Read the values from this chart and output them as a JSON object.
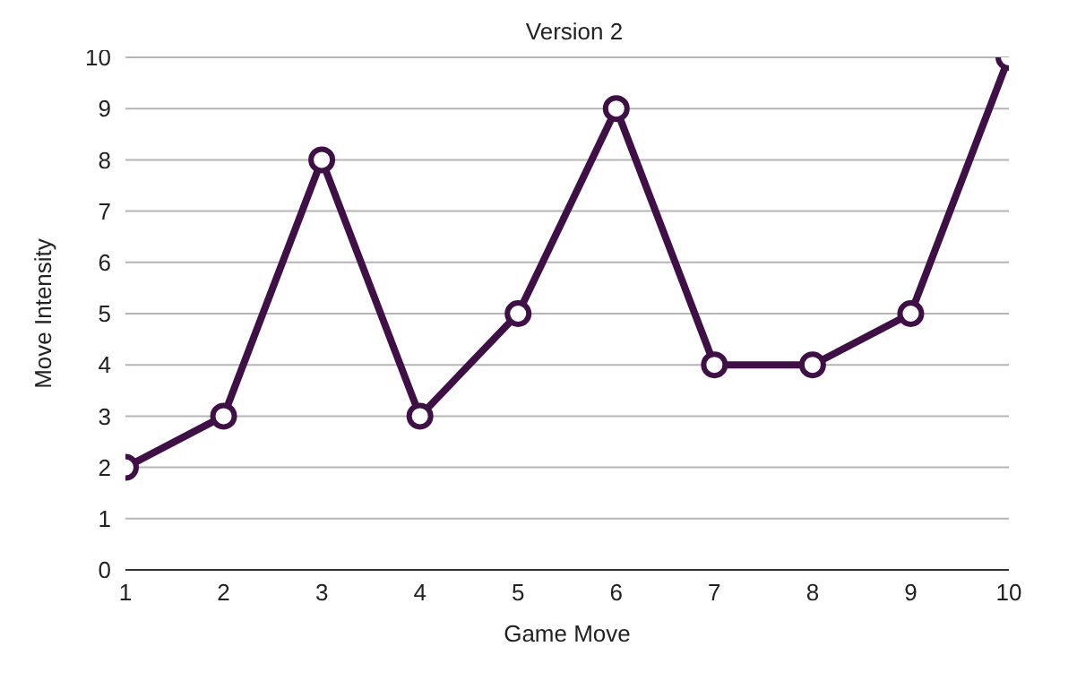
{
  "chart_data": {
    "type": "line",
    "title": "Version 2",
    "xlabel": "Game Move",
    "ylabel": "Move Intensity",
    "x": [
      1,
      2,
      3,
      4,
      5,
      6,
      7,
      8,
      9,
      10
    ],
    "series": [
      {
        "color": "#3f1046",
        "values": [
          2,
          3,
          8,
          3,
          5,
          9,
          4,
          4,
          5,
          10
        ]
      }
    ],
    "xlim": [
      1,
      10
    ],
    "xticks": [
      1,
      2,
      3,
      4,
      5,
      6,
      7,
      8,
      9,
      10
    ],
    "ylim": [
      0,
      10
    ],
    "yticks": [
      0,
      1,
      2,
      3,
      4,
      5,
      6,
      7,
      8,
      9,
      10
    ],
    "grid": "y",
    "marker": "circle",
    "line_style": "solid",
    "legend": false
  }
}
